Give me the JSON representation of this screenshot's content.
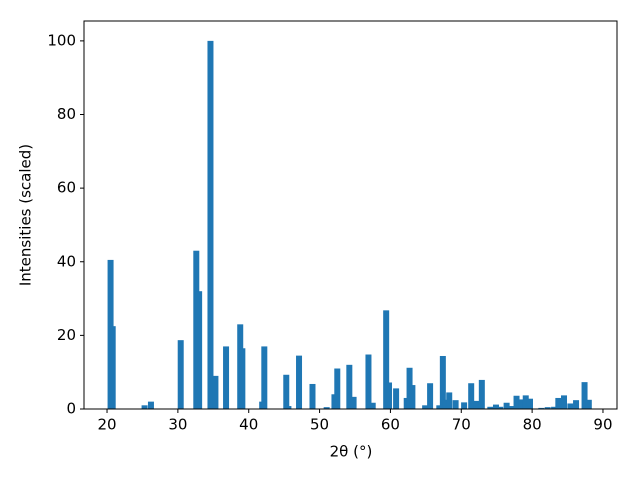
{
  "chart_data": {
    "type": "bar",
    "x_label": "2θ (°)",
    "y_label": "Intensities (scaled)",
    "x": [
      20.5,
      20.8,
      25.3,
      26.2,
      30.4,
      32.6,
      33.0,
      34.6,
      35.3,
      36.8,
      38.8,
      39.1,
      41.9,
      42.2,
      45.3,
      45.6,
      47.1,
      49.0,
      51.0,
      52.1,
      52.5,
      54.2,
      54.8,
      56.9,
      57.5,
      59.4,
      59.8,
      60.8,
      62.3,
      62.7,
      63.1,
      64.9,
      65.6,
      66.9,
      67.4,
      67.8,
      68.3,
      69.2,
      70.4,
      71.4,
      72.1,
      72.9,
      74.1,
      74.9,
      75.5,
      76.4,
      77.1,
      77.8,
      78.5,
      79.1,
      79.7,
      81.3,
      82.2,
      83.1,
      83.7,
      84.5,
      85.4,
      86.2,
      87.4,
      88.0
    ],
    "values": [
      40.5,
      22.5,
      1,
      2,
      18.7,
      43,
      32,
      100,
      9,
      17,
      23,
      16.5,
      2,
      17,
      9.3,
      0.8,
      14.5,
      6.8,
      0.5,
      4,
      11,
      12,
      3.3,
      14.8,
      1.7,
      26.8,
      7.2,
      5.6,
      3,
      11.2,
      6.5,
      1,
      7,
      1,
      14.4,
      2.5,
      4.5,
      2.4,
      1.8,
      7,
      2.2,
      7.9,
      0.6,
      1.2,
      0.6,
      1.7,
      0.8,
      3.6,
      2.6,
      3.7,
      2.8,
      0.3,
      0.5,
      0.6,
      3,
      3.7,
      1.5,
      2.4,
      7.3,
      2.5
    ],
    "color": "#1f77b4",
    "xlim": [
      16.75,
      91.98
    ],
    "ylim": [
      0,
      105.4
    ],
    "xticks": [
      20,
      30,
      40,
      50,
      60,
      70,
      80,
      90
    ],
    "yticks": [
      0,
      20,
      40,
      60,
      80,
      100
    ]
  }
}
